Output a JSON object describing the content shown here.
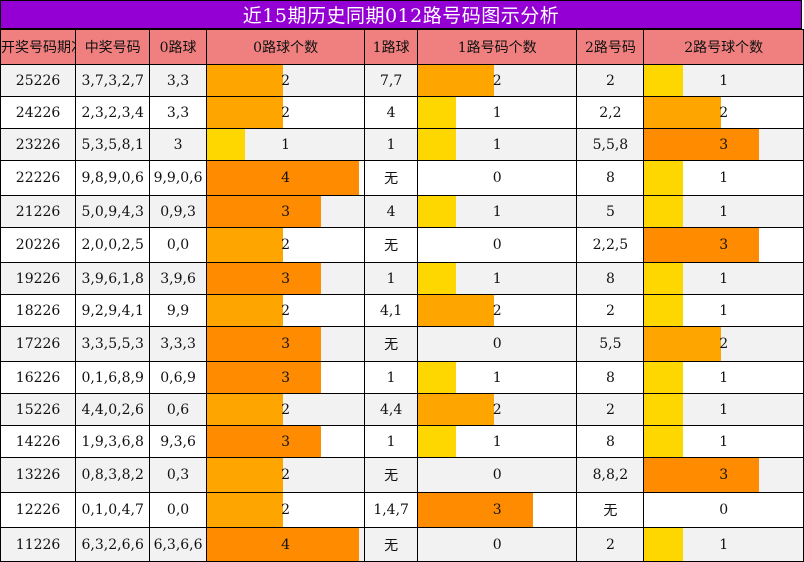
{
  "title": "近15期历史同期012路号码图示分析",
  "colors": {
    "title_bg": "#9400d3",
    "header_bg": "#f08080",
    "count_1": "#ffd700",
    "count_2": "#ffa500",
    "count_3_4": "#ff8c00"
  },
  "chart_data": {
    "type": "table",
    "columns": [
      "开奖号码期次",
      "中奖号码",
      "0路球",
      "0路球个数",
      "1路球",
      "1路号码个数",
      "2路号码",
      "2路号球个数"
    ],
    "rows": [
      {
        "issue": "25226",
        "numbers": "3,7,3,2,7",
        "r0": "3,3",
        "c0": 2,
        "r1": "7,7",
        "c1": 2,
        "r2": "2",
        "c2": 1
      },
      {
        "issue": "24226",
        "numbers": "2,3,2,3,4",
        "r0": "3,3",
        "c0": 2,
        "r1": "4",
        "c1": 1,
        "r2": "2,2",
        "c2": 2
      },
      {
        "issue": "23226",
        "numbers": "5,3,5,8,1",
        "r0": "3",
        "c0": 1,
        "r1": "1",
        "c1": 1,
        "r2": "5,5,8",
        "c2": 3
      },
      {
        "issue": "22226",
        "numbers": "9,8,9,0,6",
        "r0": "9,9,0,6",
        "c0": 4,
        "r1": "无",
        "c1": 0,
        "r2": "8",
        "c2": 1
      },
      {
        "issue": "21226",
        "numbers": "5,0,9,4,3",
        "r0": "0,9,3",
        "c0": 3,
        "r1": "4",
        "c1": 1,
        "r2": "5",
        "c2": 1
      },
      {
        "issue": "20226",
        "numbers": "2,0,0,2,5",
        "r0": "0,0",
        "c0": 2,
        "r1": "无",
        "c1": 0,
        "r2": "2,2,5",
        "c2": 3
      },
      {
        "issue": "19226",
        "numbers": "3,9,6,1,8",
        "r0": "3,9,6",
        "c0": 3,
        "r1": "1",
        "c1": 1,
        "r2": "8",
        "c2": 1
      },
      {
        "issue": "18226",
        "numbers": "9,2,9,4,1",
        "r0": "9,9",
        "c0": 2,
        "r1": "4,1",
        "c1": 2,
        "r2": "2",
        "c2": 1
      },
      {
        "issue": "17226",
        "numbers": "3,3,5,5,3",
        "r0": "3,3,3",
        "c0": 3,
        "r1": "无",
        "c1": 0,
        "r2": "5,5",
        "c2": 2
      },
      {
        "issue": "16226",
        "numbers": "0,1,6,8,9",
        "r0": "0,6,9",
        "c0": 3,
        "r1": "1",
        "c1": 1,
        "r2": "8",
        "c2": 1
      },
      {
        "issue": "15226",
        "numbers": "4,4,0,2,6",
        "r0": "0,6",
        "c0": 2,
        "r1": "4,4",
        "c1": 2,
        "r2": "2",
        "c2": 1
      },
      {
        "issue": "14226",
        "numbers": "1,9,3,6,8",
        "r0": "9,3,6",
        "c0": 3,
        "r1": "1",
        "c1": 1,
        "r2": "8",
        "c2": 1
      },
      {
        "issue": "13226",
        "numbers": "0,8,3,8,2",
        "r0": "0,3",
        "c0": 2,
        "r1": "无",
        "c1": 0,
        "r2": "8,8,2",
        "c2": 3
      },
      {
        "issue": "12226",
        "numbers": "0,1,0,4,7",
        "r0": "0,0",
        "c0": 2,
        "r1": "1,4,7",
        "c1": 3,
        "r2": "无",
        "c2": 0
      },
      {
        "issue": "11226",
        "numbers": "6,3,2,6,6",
        "r0": "6,3,6,6",
        "c0": 4,
        "r1": "无",
        "c1": 0,
        "r2": "2",
        "c2": 1
      }
    ]
  }
}
